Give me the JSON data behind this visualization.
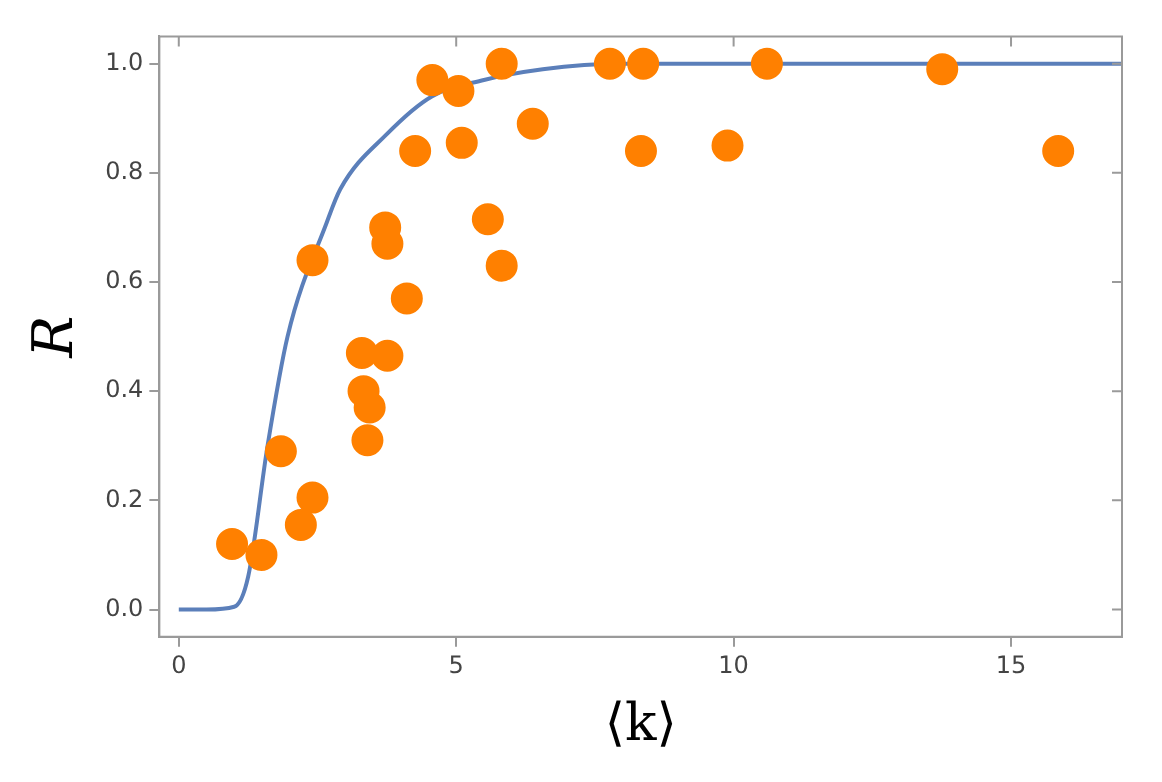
{
  "chart_data": {
    "type": "scatter",
    "xlabel": "⟨k⟩",
    "ylabel": "R",
    "xlim": [
      -0.35,
      17.0
    ],
    "ylim": [
      -0.05,
      1.05
    ],
    "xticks": [
      0,
      5,
      10,
      15
    ],
    "yticks": [
      {
        "value": 0,
        "label": "0.0"
      },
      {
        "value": 0.2,
        "label": "0.2"
      },
      {
        "value": 0.4,
        "label": "0.4"
      },
      {
        "value": 0.6,
        "label": "0.6"
      },
      {
        "value": 0.8,
        "label": "0.8"
      },
      {
        "value": 1,
        "label": "1.0"
      }
    ],
    "grid": false,
    "legend": false,
    "series": [
      {
        "type": "line",
        "color": "#5b7fba",
        "marker": "none",
        "line_style": "solid",
        "x": [
          0,
          0.5,
          1.0,
          1.25,
          1.6,
          1.96,
          2.67,
          2.91,
          3.74,
          4.56,
          5.5,
          6.56,
          8,
          10,
          17
        ],
        "values": [
          0,
          0,
          0.005,
          0.06,
          0.3,
          0.5,
          0.71,
          0.77,
          0.87,
          0.94,
          0.97,
          0.99,
          1.0,
          1.0,
          1.0
        ]
      },
      {
        "type": "scatter",
        "color": "#ff8000",
        "marker": "circle",
        "x": [
          0.96,
          1.49,
          1.84,
          2.2,
          2.41,
          2.41,
          3.3,
          3.33,
          3.44,
          3.4,
          3.72,
          3.76,
          3.76,
          4.11,
          4.26,
          4.57,
          5.04,
          5.1,
          5.57,
          5.82,
          5.82,
          6.38,
          7.77,
          8.37,
          8.33,
          9.89,
          10.6,
          13.76,
          15.85
        ],
        "values": [
          0.12,
          0.1,
          0.29,
          0.155,
          0.205,
          0.64,
          0.47,
          0.4,
          0.37,
          0.31,
          0.7,
          0.67,
          0.465,
          0.57,
          0.84,
          0.97,
          0.95,
          0.855,
          0.715,
          0.63,
          1.0,
          0.89,
          1.0,
          1.0,
          0.84,
          0.85,
          1.0,
          0.99,
          0.84
        ]
      }
    ]
  }
}
